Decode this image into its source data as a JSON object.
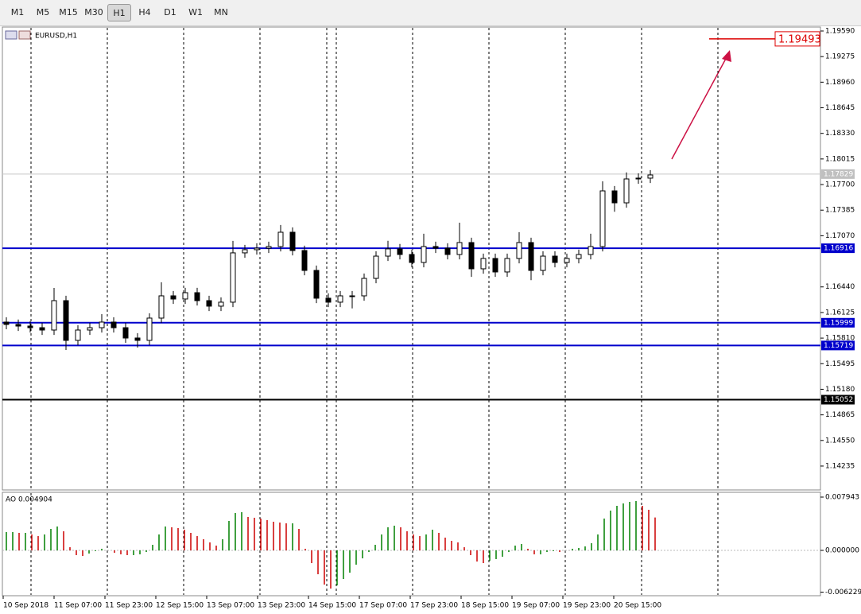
{
  "toolbar": {
    "buttons": [
      "M1",
      "M5",
      "M15",
      "M30",
      "H1",
      "H4",
      "D1",
      "W1",
      "MN"
    ],
    "active": 4
  },
  "chart_data": {
    "type": "candlestick",
    "title": "EURUSD,H1",
    "ylim": [
      1.13941,
      1.19629
    ],
    "yticks": [
      {
        "value": 1.1959,
        "label": "1.19590"
      },
      {
        "value": 1.19275,
        "label": "1.19275"
      },
      {
        "value": 1.1896,
        "label": "1.18960"
      },
      {
        "value": 1.18645,
        "label": "1.18645"
      },
      {
        "value": 1.1833,
        "label": "1.18330"
      },
      {
        "value": 1.18015,
        "label": "1.18015"
      },
      {
        "value": 1.177,
        "label": "1.17700"
      },
      {
        "value": 1.17385,
        "label": "1.17385"
      },
      {
        "value": 1.1707,
        "label": "1.17070"
      },
      {
        "value": 1.1644,
        "label": "1.16440"
      },
      {
        "value": 1.16125,
        "label": "1.16125"
      },
      {
        "value": 1.1581,
        "label": "1.15810"
      },
      {
        "value": 1.15495,
        "label": "1.15495"
      },
      {
        "value": 1.1518,
        "label": "1.15180"
      },
      {
        "value": 1.14865,
        "label": "1.14865"
      },
      {
        "value": 1.1455,
        "label": "1.14550"
      },
      {
        "value": 1.14235,
        "label": "1.14235"
      }
    ],
    "time_labels": [
      "10 Sep 2018",
      "11 Sep 07:00",
      "11 Sep 23:00",
      "12 Sep 15:00",
      "13 Sep 07:00",
      "13 Sep 23:00",
      "14 Sep 15:00",
      "17 Sep 07:00",
      "17 Sep 23:00",
      "18 Sep 15:00",
      "19 Sep 07:00",
      "19 Sep 23:00",
      "20 Sep 15:00"
    ],
    "candles": [
      [
        1.16007,
        1.16067,
        1.15918,
        1.15978
      ],
      [
        1.15978,
        1.16038,
        1.15898,
        1.15958
      ],
      [
        1.15958,
        1.16018,
        1.15878,
        1.15938
      ],
      [
        1.15938,
        1.15998,
        1.15849,
        1.15909
      ],
      [
        1.15909,
        1.16428,
        1.15849,
        1.16271
      ],
      [
        1.16271,
        1.16331,
        1.15664,
        1.15782
      ],
      [
        1.15782,
        1.15969,
        1.15722,
        1.15909
      ],
      [
        1.15909,
        1.15998,
        1.15849,
        1.15938
      ],
      [
        1.15938,
        1.16105,
        1.15878,
        1.16007
      ],
      [
        1.16007,
        1.16067,
        1.15878,
        1.15938
      ],
      [
        1.15938,
        1.15998,
        1.15751,
        1.15811
      ],
      [
        1.15811,
        1.15871,
        1.15694,
        1.15782
      ],
      [
        1.15782,
        1.16116,
        1.15722,
        1.16056
      ],
      [
        1.16056,
        1.16497,
        1.15996,
        1.1633
      ],
      [
        1.1633,
        1.1639,
        1.16231,
        1.16291
      ],
      [
        1.16291,
        1.16429,
        1.16231,
        1.16369
      ],
      [
        1.16369,
        1.16429,
        1.16211,
        1.16271
      ],
      [
        1.16271,
        1.16331,
        1.16143,
        1.16203
      ],
      [
        1.16203,
        1.16312,
        1.16143,
        1.16252
      ],
      [
        1.16252,
        1.17006,
        1.16192,
        1.16859
      ],
      [
        1.16859,
        1.16958,
        1.16799,
        1.16898
      ],
      [
        1.16898,
        1.16977,
        1.16838,
        1.16917
      ],
      [
        1.16917,
        1.16997,
        1.16857,
        1.16937
      ],
      [
        1.16937,
        1.17202,
        1.16877,
        1.17113
      ],
      [
        1.17113,
        1.17173,
        1.16828,
        1.16888
      ],
      [
        1.16888,
        1.16948,
        1.16583,
        1.16643
      ],
      [
        1.16643,
        1.16703,
        1.16241,
        1.16301
      ],
      [
        1.16301,
        1.16361,
        1.16192,
        1.16252
      ],
      [
        1.16252,
        1.1639,
        1.16192,
        1.1633
      ],
      [
        1.1633,
        1.1639,
        1.16175,
        1.1633
      ],
      [
        1.1633,
        1.16605,
        1.1627,
        1.16545
      ],
      [
        1.16545,
        1.16879,
        1.16485,
        1.16819
      ],
      [
        1.16819,
        1.17008,
        1.16759,
        1.16908
      ],
      [
        1.16908,
        1.16968,
        1.16779,
        1.16839
      ],
      [
        1.16839,
        1.16899,
        1.16681,
        1.16741
      ],
      [
        1.16741,
        1.17095,
        1.16681,
        1.16937
      ],
      [
        1.16937,
        1.16997,
        1.16857,
        1.16917
      ],
      [
        1.16917,
        1.16977,
        1.16779,
        1.16839
      ],
      [
        1.16839,
        1.17231,
        1.16779,
        1.16986
      ],
      [
        1.16986,
        1.17046,
        1.16563,
        1.16663
      ],
      [
        1.16663,
        1.1685,
        1.16603,
        1.1679
      ],
      [
        1.1679,
        1.1685,
        1.16564,
        1.16624
      ],
      [
        1.16624,
        1.1685,
        1.16564,
        1.1679
      ],
      [
        1.1679,
        1.17114,
        1.1673,
        1.16986
      ],
      [
        1.16986,
        1.17046,
        1.16523,
        1.16643
      ],
      [
        1.16643,
        1.16879,
        1.16583,
        1.16819
      ],
      [
        1.16819,
        1.16879,
        1.16681,
        1.16741
      ],
      [
        1.16741,
        1.1685,
        1.16681,
        1.1679
      ],
      [
        1.1679,
        1.16899,
        1.1673,
        1.16839
      ],
      [
        1.16839,
        1.17095,
        1.16779,
        1.16937
      ],
      [
        1.16937,
        1.1774,
        1.16877,
        1.17622
      ],
      [
        1.17622,
        1.17682,
        1.17365,
        1.17475
      ],
      [
        1.17475,
        1.1785,
        1.17415,
        1.17769
      ],
      [
        1.17769,
        1.17839,
        1.17709,
        1.17779
      ],
      [
        1.17779,
        1.17878,
        1.17719,
        1.17818
      ]
    ],
    "levels": [
      {
        "value": 1.16916,
        "color": "#0000cc"
      },
      {
        "value": 1.15999,
        "color": "#0000cc"
      },
      {
        "value": 1.15719,
        "color": "#0000cc"
      },
      {
        "value": 1.15052,
        "color": "#000000"
      }
    ],
    "current_price": 1.17829,
    "target": 1.19493,
    "indicator": {
      "label": "AO 0.004904",
      "rise_color": "#008000",
      "fall_color": "#cc0000",
      "ylim": [
        -0.00664,
        0.008536
      ],
      "yticks": [
        0.007943,
        {
          "value": 0,
          "label": "0.000000"
        },
        -0.006229
      ],
      "values": [
        0.00273,
        0.00273,
        0.00261,
        0.00261,
        0.00237,
        0.00213,
        0.00237,
        0.0032,
        0.00356,
        0.00285,
        0.00047,
        -0.00071,
        -0.00083,
        -0.00047,
        -0.00012,
        0.00024,
        0,
        -0.00036,
        -0.00059,
        -0.00071,
        -0.00071,
        -0.00059,
        -0.00024,
        0.00083,
        0.00237,
        0.00356,
        0.00344,
        0.00332,
        0.00308,
        0.00261,
        0.00213,
        0.00166,
        0.00119,
        0.00071,
        0.00166,
        0.00439,
        0.00557,
        0.00569,
        0.00498,
        0.00486,
        0.00474,
        0.00451,
        0.00427,
        0.00415,
        0.00403,
        0.00403,
        0.0032,
        0.00024,
        -0.0019,
        -0.00356,
        -0.0051,
        -0.00569,
        -0.00522,
        -0.00427,
        -0.00332,
        -0.00213,
        -0.00119,
        -0.00024,
        0.00083,
        0.00237,
        0.00344,
        0.00368,
        0.00344,
        0.00285,
        0.00237,
        0.00213,
        0.00237,
        0.00308,
        0.00261,
        0.0019,
        0.00142,
        0.00119,
        0.00047,
        -0.00071,
        -0.00166,
        -0.0019,
        -0.00154,
        -0.0013,
        -0.00095,
        -0.00024,
        0.00071,
        0.00095,
        0.00024,
        -0.00059,
        -0.00059,
        -0.00024,
        -0.00012,
        -0.00024,
        0,
        0.00024,
        0.00036,
        0.00059,
        0.00107,
        0.00237,
        0.00474,
        0.00593,
        0.00664,
        0.007,
        0.00723,
        0.00735,
        0.00664,
        0.00605,
        0.004904
      ]
    }
  }
}
